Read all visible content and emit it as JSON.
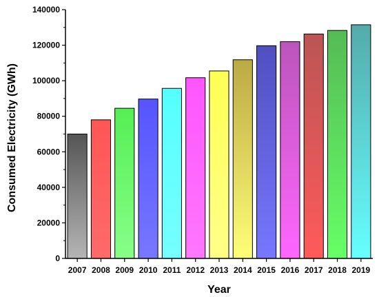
{
  "chart_data": {
    "type": "bar",
    "title": "",
    "xlabel": "Year",
    "ylabel": "Consumed Electricity (GWh)",
    "categories": [
      "2007",
      "2008",
      "2009",
      "2010",
      "2011",
      "2012",
      "2013",
      "2014",
      "2015",
      "2016",
      "2017",
      "2018",
      "2019"
    ],
    "values": [
      70000,
      78000,
      84500,
      89700,
      95700,
      101700,
      105500,
      111800,
      119700,
      122000,
      126300,
      128300,
      131500
    ],
    "ylim": [
      0,
      140000
    ],
    "yticks": [
      0,
      20000,
      40000,
      60000,
      80000,
      100000,
      120000,
      140000
    ],
    "ytick_labels": [
      "0",
      "20000",
      "40000",
      "60000",
      "80000",
      "100000",
      "120000",
      "140000"
    ],
    "grid": false,
    "legend": "none",
    "bar_colors": [
      "#555555",
      "#ff5555",
      "#55ee55",
      "#5555ff",
      "#55ffff",
      "#ff55ff",
      "#ffff55",
      "#bbaa44",
      "#5050c0",
      "#bb55bb",
      "#bb5555",
      "#55bb55",
      "#55aaaa"
    ],
    "bar_fade_colors": [
      "#b5b5b5",
      "#ff6a6a",
      "#88ff88",
      "#7777ff",
      "#77ffff",
      "#ff77ff",
      "#ffff88",
      "#ffff77",
      "#7777ff",
      "#ff66ff",
      "#ff5a5a",
      "#66ff66",
      "#66ffff"
    ]
  }
}
